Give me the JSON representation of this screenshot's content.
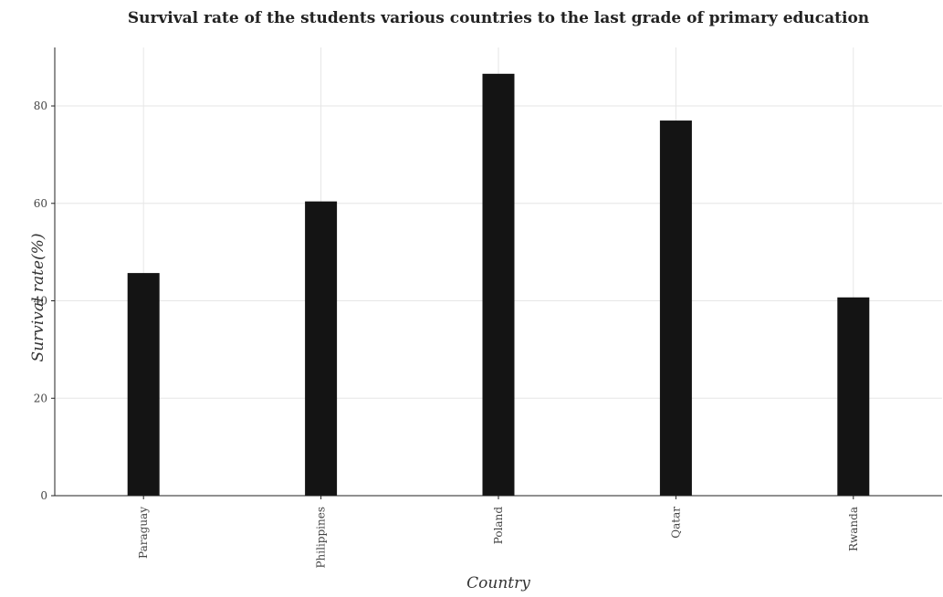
{
  "chart_data": {
    "type": "bar",
    "title": "Survival rate of the students various countries to the last grade of primary education",
    "xlabel": "Country",
    "ylabel": "Survival rate(%)",
    "categories": [
      "Paraguay",
      "Philippines",
      "Poland",
      "Qatar",
      "Rwanda"
    ],
    "values": [
      45.7,
      60.4,
      86.6,
      77.0,
      40.7
    ],
    "ylim": [
      0,
      92
    ],
    "yticks": [
      0,
      20,
      40,
      60,
      80
    ],
    "grid": true,
    "bar_color": "#141414"
  }
}
